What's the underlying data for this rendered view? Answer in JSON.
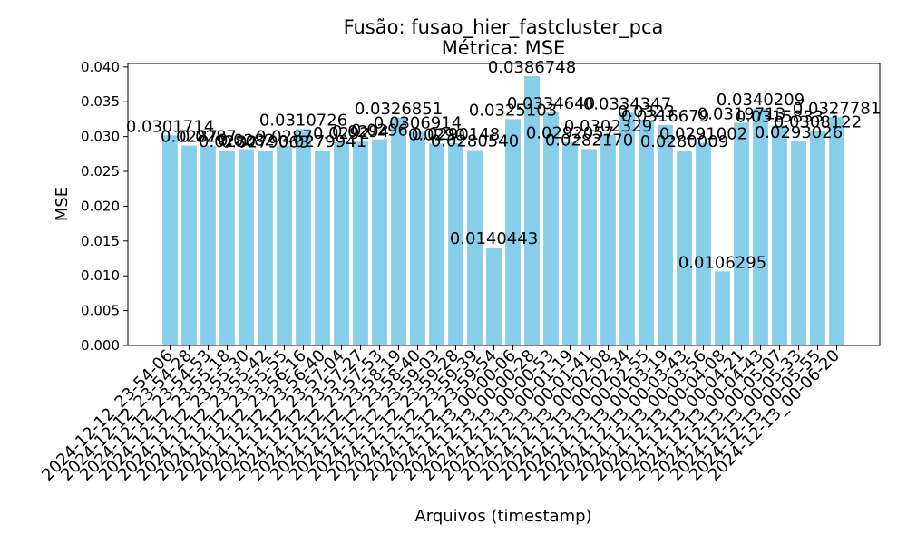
{
  "chart_data": {
    "type": "bar",
    "title": "Fusão: fusao_hier_fastcluster_pca",
    "subtitle": "Métrica: MSE",
    "xlabel": "Arquivos (timestamp)",
    "ylabel": "MSE",
    "ylim": [
      0,
      0.0405
    ],
    "yticks": [
      "0.000",
      "0.005",
      "0.010",
      "0.015",
      "0.020",
      "0.025",
      "0.030",
      "0.035",
      "0.040"
    ],
    "ytick_values": [
      0,
      0.005,
      0.01,
      0.015,
      0.02,
      0.025,
      0.03,
      0.035,
      0.04
    ],
    "bar_color": "#87ceeb",
    "categories": [
      "2024-12-12_23-54-06",
      "2024-12-12_23-54-28",
      "2024-12-12_23-54-53",
      "2024-12-12_23-55-18",
      "2024-12-12_23-55-30",
      "2024-12-12_23-55-42",
      "2024-12-12_23-55-55",
      "2024-12-12_23-56-16",
      "2024-12-12_23-56-40",
      "2024-12-12_23-57-04",
      "2024-12-12_23-57-27",
      "2024-12-12_23-57-53",
      "2024-12-12_23-58-19",
      "2024-12-12_23-58-40",
      "2024-12-12_23-59-03",
      "2024-12-12_23-59-28",
      "2024-12-12_23-59-39",
      "2024-12-12_23-59-54",
      "2024-12-13_00-00-06",
      "2024-12-13_00-00-28",
      "2024-12-13_00-00-53",
      "2024-12-13_00-01-19",
      "2024-12-13_00-01-41",
      "2024-12-13_00-02-08",
      "2024-12-13_00-02-34",
      "2024-12-13_00-02-55",
      "2024-12-13_00-03-19",
      "2024-12-13_00-03-43",
      "2024-12-13_00-03-56",
      "2024-12-13_00-04-08",
      "2024-12-13_00-04-21",
      "2024-12-13_00-04-43",
      "2024-12-13_00-05-07",
      "2024-12-13_00-05-33",
      "2024-12-13_00-05-55",
      "2024-12-13_00-06-20"
    ],
    "values": [
      0.0301714,
      0.0287,
      0.0287,
      0.028,
      0.0282,
      0.0279063,
      0.0287,
      0.0310726,
      0.0279941,
      0.0292,
      0.0294,
      0.0296,
      0.0326851,
      0.0306914,
      0.029,
      0.0290148,
      0.028054,
      0.0140443,
      0.0325103,
      0.0386748,
      0.033464,
      0.0292057,
      0.028217,
      0.0302329,
      0.0334347,
      0.0323,
      0.0316679,
      0.0280009,
      0.0291002,
      0.0106295,
      0.0319713,
      0.0340209,
      0.0315833,
      0.0293026,
      0.0308122,
      0.0327781
    ],
    "labels": [
      "0.0301714",
      "0.0287",
      "0.0287",
      "0.0280",
      "0.0282",
      "0.0279063",
      "0.0287",
      "0.0310726",
      "0.0279941",
      "0.0292",
      "0.0294",
      "0.0296",
      "0.0326851",
      "0.0306914",
      "0.0290",
      "0.0290148",
      "0.0280540",
      "0.0140443",
      "0.0325103",
      "0.0386748",
      "0.0334640",
      "0.0292057",
      "0.0282170",
      "0.0302329",
      "0.0334347",
      "0.0323",
      "0.0316679",
      "0.0280009",
      "0.0291002",
      "0.0106295",
      "0.0319713",
      "0.0340209",
      "0.0315833",
      "0.0293026",
      "0.0308122",
      "0.0327781"
    ],
    "grid": false,
    "legend": "none"
  }
}
